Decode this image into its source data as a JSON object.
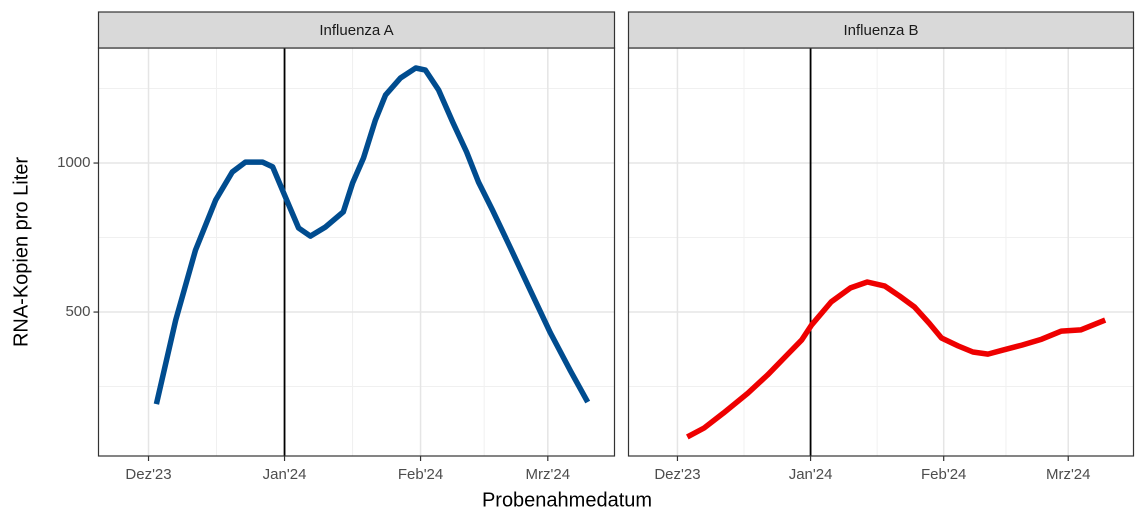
{
  "chart_data": {
    "type": "line",
    "xlabel": "Probenahmedatum",
    "ylabel": "RNA-Kopien pro Liter",
    "xlim": [
      -11.4,
      106.2
    ],
    "ylim": [
      17,
      1386
    ],
    "xticks": [
      {
        "value": 0,
        "label": "Dez'23"
      },
      {
        "value": 31,
        "label": "Jan'24"
      },
      {
        "value": 62,
        "label": "Feb'24"
      },
      {
        "value": 91,
        "label": "Mrz'24"
      }
    ],
    "xminor": [
      15.5,
      46.5,
      76.5
    ],
    "yticks": [
      500,
      1000
    ],
    "yminor": [
      250,
      750,
      1250
    ],
    "vline": 31,
    "grid": true,
    "facets": [
      {
        "title": "Influenza A",
        "color": "#004c8f",
        "x": [
          1.8,
          6.2,
          10.7,
          15.3,
          19.1,
          22.1,
          26,
          28.3,
          31,
          34.2,
          36.9,
          40.3,
          44.4,
          46.5,
          49,
          51.7,
          54,
          57.4,
          60.9,
          63.1,
          66.1,
          69.3,
          72.5,
          75.2,
          78.4,
          82.5,
          87.1,
          91.6,
          96.2,
          100.1
        ],
        "values": [
          191,
          473,
          708,
          876,
          970,
          1003,
          1003,
          987,
          893,
          782,
          755,
          785,
          836,
          933,
          1017,
          1144,
          1228,
          1285,
          1319,
          1312,
          1245,
          1138,
          1037,
          936,
          842,
          715,
          570,
          430,
          302,
          198
        ]
      },
      {
        "title": "Influenza B",
        "color": "#ee0000",
        "x": [
          2.3,
          6.2,
          10.7,
          16.4,
          21,
          25.5,
          28.9,
          31.2,
          35.8,
          40.3,
          44.2,
          48.3,
          51.7,
          55.2,
          58.6,
          61.5,
          65.4,
          68.8,
          72.3,
          75.7,
          80.2,
          84.8,
          89.4,
          93.9,
          99.6
        ],
        "values": [
          81,
          111,
          161,
          228,
          289,
          356,
          406,
          456,
          534,
          581,
          601,
          587,
          554,
          517,
          463,
          413,
          386,
          366,
          359,
          372,
          389,
          409,
          436,
          440,
          473
        ]
      }
    ]
  }
}
